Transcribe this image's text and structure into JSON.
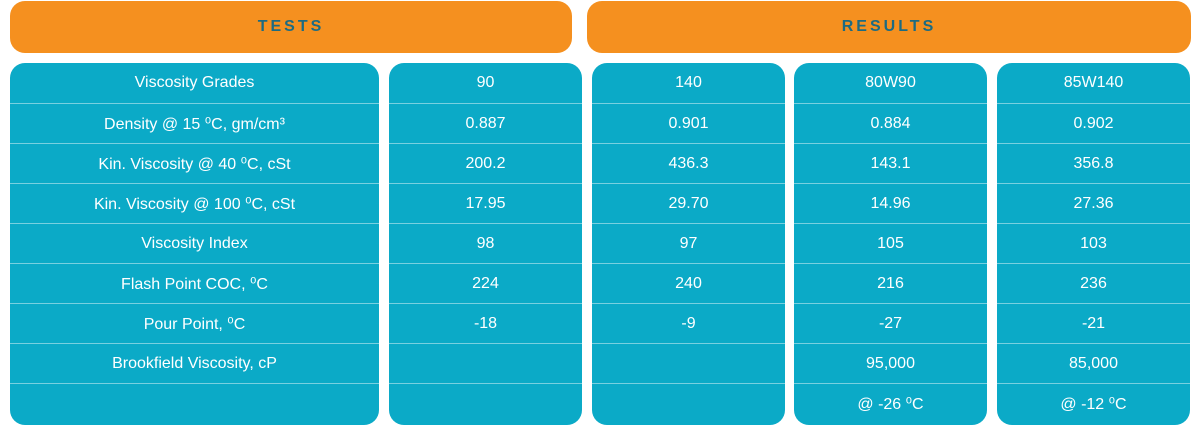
{
  "headers": {
    "tests": "TESTS",
    "results": "RESULTS"
  },
  "colors": {
    "header_bg": "#f5901f",
    "header_text": "#1c6b82",
    "column_bg": "#0baac7",
    "cell_text": "#ffffff"
  },
  "tests": {
    "r0": "Viscosity Grades",
    "r1": "Density @ 15 ⁰C, gm/cm³",
    "r2": "Kin. Viscosity @ 40 ⁰C, cSt",
    "r3": "Kin. Viscosity @ 100 ⁰C, cSt",
    "r4": "Viscosity Index",
    "r5": "Flash Point COC, ⁰C",
    "r6": "Pour Point, ⁰C",
    "r7": "Brookfield Viscosity, cP",
    "r8": ""
  },
  "grade_90": {
    "r0": "90",
    "r1": "0.887",
    "r2": "200.2",
    "r3": "17.95",
    "r4": "98",
    "r5": "224",
    "r6": "-18",
    "r7": "",
    "r8": ""
  },
  "grade_140": {
    "r0": "140",
    "r1": "0.901",
    "r2": "436.3",
    "r3": "29.70",
    "r4": "97",
    "r5": "240",
    "r6": "-9",
    "r7": "",
    "r8": ""
  },
  "grade_80w90": {
    "r0": "80W90",
    "r1": "0.884",
    "r2": "143.1",
    "r3": "14.96",
    "r4": "105",
    "r5": "216",
    "r6": "-27",
    "r7": "95,000",
    "r8": "@ -26 ⁰C"
  },
  "grade_85w140": {
    "r0": "85W140",
    "r1": "0.902",
    "r2": "356.8",
    "r3": "27.36",
    "r4": "103",
    "r5": "236",
    "r6": "-21",
    "r7": "85,000",
    "r8": "@ -12 ⁰C"
  }
}
